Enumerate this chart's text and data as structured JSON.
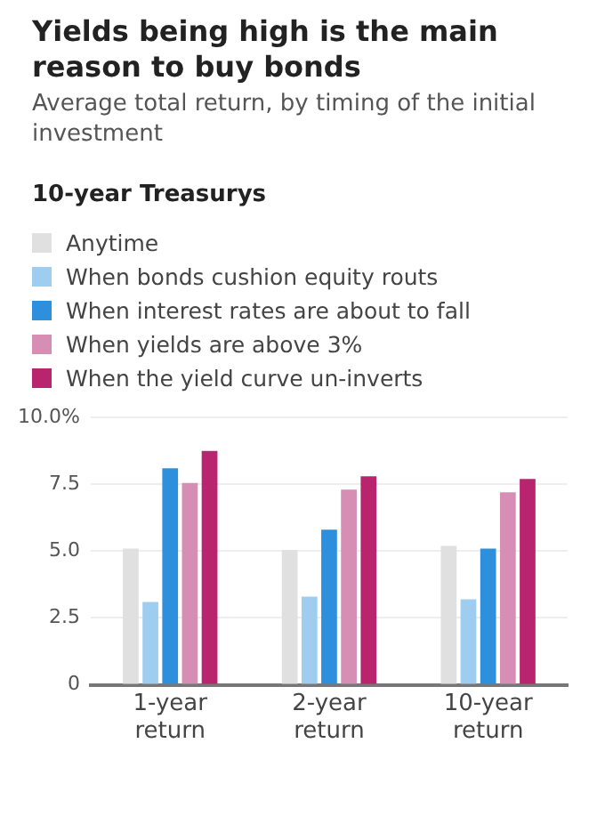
{
  "chart_data": {
    "type": "bar",
    "title": "Yields being high is the main reason to buy bonds",
    "subtitle": "Average total return, by timing of the initial investment",
    "legend_title": "10-year Treasurys",
    "categories": [
      "1-year return",
      "2-year return",
      "10-year return"
    ],
    "series": [
      {
        "name": "Anytime",
        "color": "#e0e0e0",
        "values": [
          5.1,
          5.05,
          5.2
        ]
      },
      {
        "name": "When bonds cushion equity routs",
        "color": "#9fcdf0",
        "values": [
          3.1,
          3.3,
          3.2
        ]
      },
      {
        "name": "When interest rates are about to fall",
        "color": "#2e8fdc",
        "values": [
          8.1,
          5.8,
          5.1
        ]
      },
      {
        "name": "When yields are above 3%",
        "color": "#d68eb5",
        "values": [
          7.55,
          7.3,
          7.2
        ]
      },
      {
        "name": "When the yield curve un-inverts",
        "color": "#b8256e",
        "values": [
          8.75,
          7.8,
          7.7
        ]
      }
    ],
    "ylim": [
      0,
      10
    ],
    "yticks": [
      0,
      2.5,
      {
        "value": 5,
        "label": "5.0"
      },
      7.5,
      {
        "value": 10,
        "label": "10.0%"
      }
    ],
    "grid": "y",
    "legend": "top"
  }
}
